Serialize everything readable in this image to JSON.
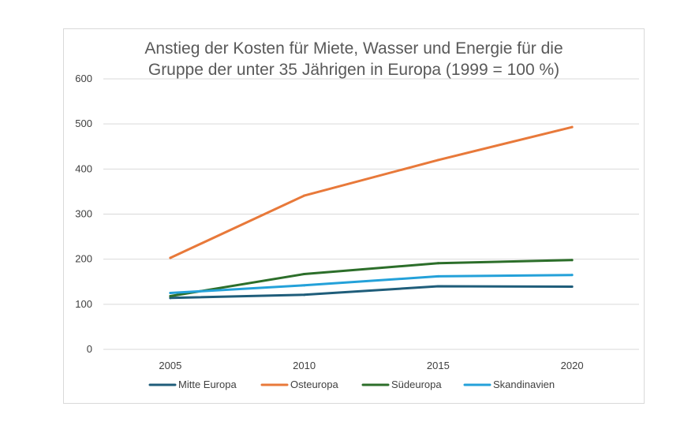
{
  "chart_data": {
    "type": "line",
    "title_lines": [
      "Anstieg der Kosten für Miete, Wasser und Energie für die",
      "Gruppe der unter 35 Jährigen in Europa (1999 = 100 %)"
    ],
    "categories": [
      "2005",
      "2010",
      "2015",
      "2020"
    ],
    "ylim": [
      0,
      600
    ],
    "yticks": [
      0,
      100,
      200,
      300,
      400,
      500,
      600
    ],
    "grid": true,
    "legend_position": "bottom",
    "series": [
      {
        "name": "Mitte Europa",
        "color": "#1f5d7a",
        "values": [
          114,
          121,
          140,
          139
        ]
      },
      {
        "name": "Osteuropa",
        "color": "#e8793a",
        "values": [
          203,
          341,
          420,
          493
        ]
      },
      {
        "name": "Südeuropa",
        "color": "#2c6e2a",
        "values": [
          118,
          167,
          191,
          198
        ]
      },
      {
        "name": "Skandinavien",
        "color": "#24a1d9",
        "values": [
          125,
          142,
          162,
          165
        ]
      }
    ]
  }
}
